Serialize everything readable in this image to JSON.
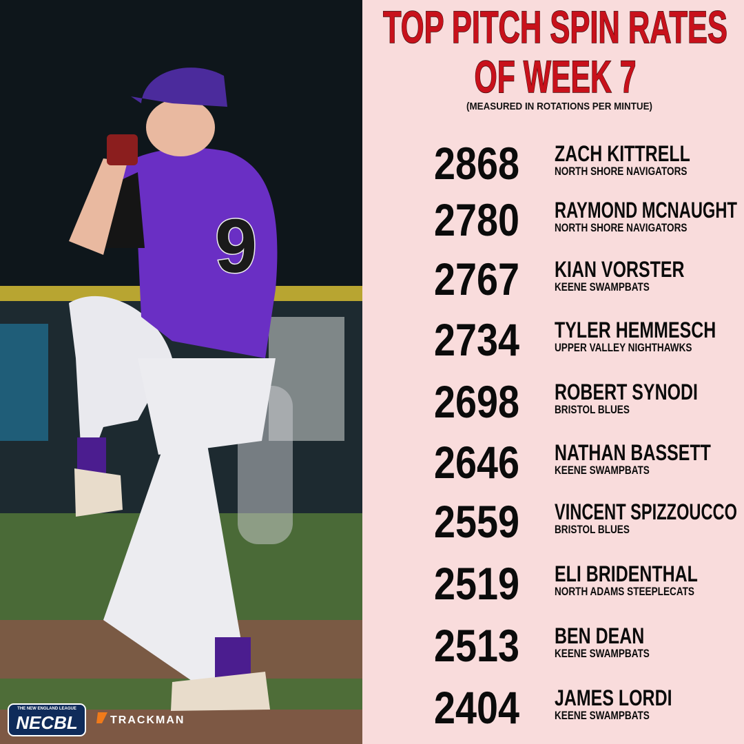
{
  "header": {
    "title_line1": "TOP PITCH SPIN RATES",
    "title_line2": "OF WEEK 7",
    "subtitle": "(MEASURED IN ROTATIONS PER MINTUE)"
  },
  "entries": [
    {
      "rpm": "2868",
      "name": "ZACH KITTRELL",
      "team": "NORTH SHORE NAVIGATORS"
    },
    {
      "rpm": "2780",
      "name": "RAYMOND MCNAUGHT",
      "team": "NORTH SHORE NAVIGATORS"
    },
    {
      "rpm": "2767",
      "name": "KIAN VORSTER",
      "team": "KEENE SWAMPBATS"
    },
    {
      "rpm": "2734",
      "name": "TYLER HEMMESCH",
      "team": "UPPER VALLEY NIGHTHAWKS"
    },
    {
      "rpm": "2698",
      "name": "ROBERT SYNODI",
      "team": "BRISTOL BLUES"
    },
    {
      "rpm": "2646",
      "name": "NATHAN BASSETT",
      "team": "KEENE SWAMPBATS"
    },
    {
      "rpm": "2559",
      "name": "VINCENT SPIZZOUCCO",
      "team": "BRISTOL BLUES"
    },
    {
      "rpm": "2519",
      "name": "ELI BRIDENTHAL",
      "team": "NORTH ADAMS STEEPLECATS"
    },
    {
      "rpm": "2513",
      "name": "BEN DEAN",
      "team": "KEENE SWAMPBATS"
    },
    {
      "rpm": "2404",
      "name": "JAMES LORDI",
      "team": "KEENE SWAMPBATS"
    }
  ],
  "logos": {
    "league_tagline": "THE NEW ENGLAND LEAGUE",
    "league": "NECBL",
    "sponsor": "TRACKMAN"
  }
}
